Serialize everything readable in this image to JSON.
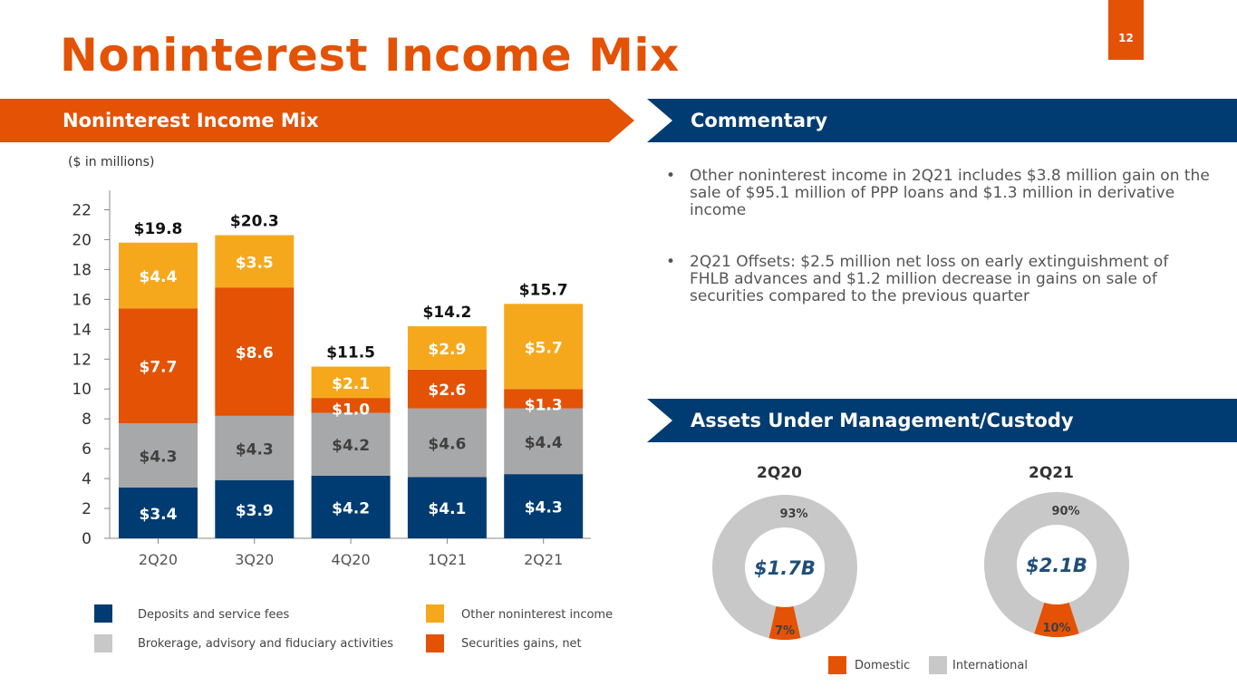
{
  "page": {
    "title": "Noninterest Income Mix",
    "number": "12"
  },
  "banners": {
    "left": "Noninterest Income Mix",
    "commentary": "Commentary",
    "aum": "Assets Under Management/Custody"
  },
  "units": "($ in millions)",
  "commentary": [
    "Other noninterest income in 2Q21 includes $3.8 million gain on the sale of $95.1 million of PPP loans and $1.3 million in derivative income",
    "2Q21 Offsets: $2.5 million net loss on early extinguishment of FHLB advances and $1.2 million decrease in gains on sale of securities compared to the previous quarter"
  ],
  "chart_data": [
    {
      "type": "bar",
      "stacked": true,
      "title": "Noninterest Income Mix",
      "ylabel": "($ in millions)",
      "ylim": [
        0,
        22
      ],
      "yticks": [
        0,
        2,
        4,
        6,
        8,
        10,
        12,
        14,
        16,
        18,
        20,
        22
      ],
      "categories": [
        "2Q20",
        "3Q20",
        "4Q20",
        "1Q21",
        "2Q21"
      ],
      "series": [
        {
          "name": "Deposits and service fees",
          "color": "#003c71",
          "label_color": "#ffffff",
          "values": [
            3.4,
            3.9,
            4.2,
            4.1,
            4.3
          ],
          "labels": [
            "$3.4",
            "$3.9",
            "$4.2",
            "$4.1",
            "$4.3"
          ]
        },
        {
          "name": "Brokerage, advisory and fiduciary activities",
          "color": "#a7a8a9",
          "label_color": "#404040",
          "values": [
            4.3,
            4.3,
            4.2,
            4.6,
            4.4
          ],
          "labels": [
            "$4.3",
            "$4.3",
            "$4.2",
            "$4.6",
            "$4.4"
          ]
        },
        {
          "name": "Securities gains, net",
          "color": "#e35205",
          "label_color": "#ffffff",
          "values": [
            7.7,
            8.6,
            1.0,
            2.6,
            1.3
          ],
          "labels": [
            "$7.7",
            "$8.6",
            "$1.0",
            "$2.6",
            "$1.3"
          ]
        },
        {
          "name": "Other noninterest income",
          "color": "#f6a81c",
          "label_color": "#ffffff",
          "values": [
            4.4,
            3.5,
            2.1,
            2.9,
            5.7
          ],
          "labels": [
            "$4.4",
            "$3.5",
            "$2.1",
            "$2.9",
            "$5.7"
          ]
        }
      ],
      "totals": [
        19.8,
        20.3,
        11.5,
        14.2,
        15.7
      ],
      "total_labels": [
        "$19.8",
        "$20.3",
        "$11.5",
        "$14.2",
        "$15.7"
      ],
      "legend": "bottom"
    },
    {
      "type": "pie",
      "donut": true,
      "title": "2Q20",
      "center_label": "$1.7B",
      "slices": [
        {
          "name": "Domestic",
          "value": 7,
          "label": "7%",
          "color": "#e35205"
        },
        {
          "name": "International",
          "value": 93,
          "label": "93%",
          "color": "#c8c8c8"
        }
      ]
    },
    {
      "type": "pie",
      "donut": true,
      "title": "2Q21",
      "center_label": "$2.1B",
      "slices": [
        {
          "name": "Domestic",
          "value": 10,
          "label": "10%",
          "color": "#e35205"
        },
        {
          "name": "International",
          "value": 90,
          "label": "90%",
          "color": "#c8c8c8"
        }
      ]
    }
  ],
  "donut_legend": [
    "Domestic",
    "International"
  ]
}
